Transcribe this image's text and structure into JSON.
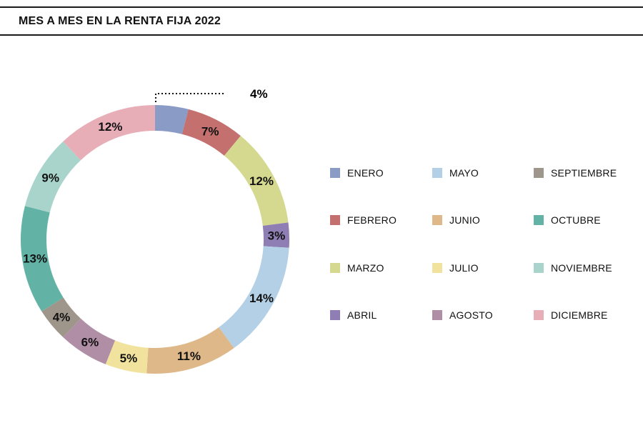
{
  "title": "MES A MES EN LA RENTA FIJA 2022",
  "chart_data": {
    "type": "pie",
    "donut": true,
    "title": "MES A MES EN LA RENTA FIJA 2022",
    "legend_position": "right",
    "categories": [
      "ENERO",
      "FEBRERO",
      "MARZO",
      "ABRIL",
      "MAYO",
      "JUNIO",
      "JULIO",
      "AGOSTO",
      "SEPTIEMBRE",
      "OCTUBRE",
      "NOVIEMBRE",
      "DICIEMBRE"
    ],
    "values": [
      4,
      7,
      12,
      3,
      14,
      11,
      5,
      6,
      4,
      13,
      9,
      12
    ],
    "value_labels": [
      "4%",
      "7%",
      "12%",
      "3%",
      "14%",
      "11%",
      "5%",
      "6%",
      "4%",
      "13%",
      "9%",
      "12%"
    ],
    "colors": [
      "#8a9bc6",
      "#c4706e",
      "#d4d98f",
      "#8e7eb4",
      "#b3d0e6",
      "#dfb88a",
      "#f1e39d",
      "#b08ea6",
      "#9e968a",
      "#62b3a5",
      "#a9d4cc",
      "#e8aeb8"
    ],
    "legend_columns": [
      [
        "ENERO",
        "FEBRERO",
        "MARZO",
        "ABRIL"
      ],
      [
        "MAYO",
        "JUNIO",
        "JULIO",
        "AGOSTO"
      ],
      [
        "SEPTIEMBRE",
        "OCTUBRE",
        "NOVIEMBRE",
        "DICIEMBRE"
      ]
    ],
    "callout_category": "ENERO"
  }
}
